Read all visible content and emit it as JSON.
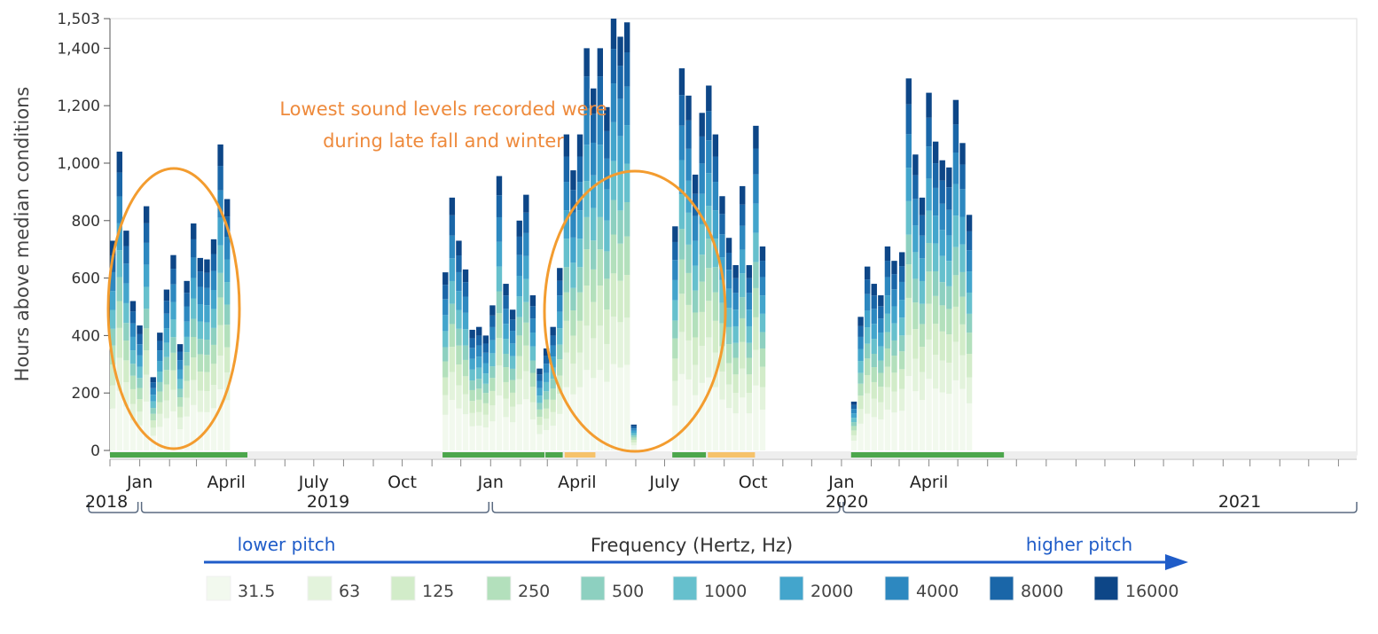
{
  "chart_data": {
    "type": "bar",
    "stacked": true,
    "ylabel": "Hours above median conditions",
    "ylim": [
      0,
      1503
    ],
    "yticks": [
      0,
      200,
      400,
      600,
      800,
      1000,
      1200,
      1400,
      1503
    ],
    "ytick_labels": [
      "0",
      "200",
      "400",
      "600",
      "800",
      "1,000",
      "1,200",
      "1,400",
      "1,503"
    ],
    "x_start": "2017-12-01",
    "x_end": "2021-06-20",
    "month_ticks": [
      {
        "label": "Jan",
        "date": "2018-01-01"
      },
      {
        "label": "April",
        "date": "2018-04-01"
      },
      {
        "label": "July",
        "date": "2018-07-01"
      },
      {
        "label": "Oct",
        "date": "2018-10-01"
      },
      {
        "label": "Jan",
        "date": "2019-01-01"
      },
      {
        "label": "April",
        "date": "2019-04-01"
      },
      {
        "label": "July",
        "date": "2019-07-01"
      },
      {
        "label": "Oct",
        "date": "2019-10-01"
      },
      {
        "label": "Jan",
        "date": "2020-01-01"
      },
      {
        "label": "April",
        "date": "2020-04-01"
      }
    ],
    "years": [
      {
        "label": "2018",
        "start": "2017-12-01",
        "end": "2018-01-01"
      },
      {
        "label": "2019",
        "start": "2018-01-01",
        "end": "2019-01-01"
      },
      {
        "label": "2020",
        "start": "2019-01-01",
        "end": "2020-01-01"
      },
      {
        "label": "2021",
        "start": "2020-01-01",
        "end": "2020-06-20"
      }
    ],
    "coverage": [
      {
        "start": "2017-12-01",
        "end": "2018-04-23",
        "color": "#4ca64c"
      },
      {
        "start": "2018-11-12",
        "end": "2019-02-26",
        "color": "#4ca64c"
      },
      {
        "start": "2019-02-27",
        "end": "2019-03-17",
        "color": "#4ca64c"
      },
      {
        "start": "2019-03-19",
        "end": "2019-04-20",
        "color": "#f6c26b"
      },
      {
        "start": "2019-07-09",
        "end": "2019-08-13",
        "color": "#4ca64c"
      },
      {
        "start": "2019-08-15",
        "end": "2019-10-03",
        "color": "#f6c26b"
      },
      {
        "start": "2020-01-11",
        "end": "2020-06-18",
        "color": "#4ca64c"
      }
    ],
    "weeks": [
      {
        "date": "2017-12-01",
        "total": 730
      },
      {
        "date": "2017-12-08",
        "total": 1040
      },
      {
        "date": "2017-12-15",
        "total": 765
      },
      {
        "date": "2017-12-22",
        "total": 520
      },
      {
        "date": "2017-12-29",
        "total": 435
      },
      {
        "date": "2018-01-05",
        "total": 850
      },
      {
        "date": "2018-01-12",
        "total": 255
      },
      {
        "date": "2018-01-19",
        "total": 410
      },
      {
        "date": "2018-01-26",
        "total": 560
      },
      {
        "date": "2018-02-02",
        "total": 680
      },
      {
        "date": "2018-02-09",
        "total": 370
      },
      {
        "date": "2018-02-16",
        "total": 590
      },
      {
        "date": "2018-02-23",
        "total": 790
      },
      {
        "date": "2018-03-02",
        "total": 670
      },
      {
        "date": "2018-03-09",
        "total": 665
      },
      {
        "date": "2018-03-16",
        "total": 735
      },
      {
        "date": "2018-03-23",
        "total": 1065
      },
      {
        "date": "2018-03-30",
        "total": 875
      },
      {
        "date": "2018-11-12",
        "total": 620
      },
      {
        "date": "2018-11-19",
        "total": 880
      },
      {
        "date": "2018-11-26",
        "total": 730
      },
      {
        "date": "2018-12-03",
        "total": 630
      },
      {
        "date": "2018-12-10",
        "total": 420
      },
      {
        "date": "2018-12-17",
        "total": 430
      },
      {
        "date": "2018-12-24",
        "total": 400
      },
      {
        "date": "2018-12-31",
        "total": 505
      },
      {
        "date": "2019-01-07",
        "total": 955
      },
      {
        "date": "2019-01-14",
        "total": 580
      },
      {
        "date": "2019-01-21",
        "total": 490
      },
      {
        "date": "2019-01-28",
        "total": 800
      },
      {
        "date": "2019-02-04",
        "total": 890
      },
      {
        "date": "2019-02-11",
        "total": 540
      },
      {
        "date": "2019-02-18",
        "total": 285
      },
      {
        "date": "2019-02-25",
        "total": 355
      },
      {
        "date": "2019-03-04",
        "total": 430
      },
      {
        "date": "2019-03-11",
        "total": 635
      },
      {
        "date": "2019-03-18",
        "total": 1100
      },
      {
        "date": "2019-03-25",
        "total": 975
      },
      {
        "date": "2019-04-01",
        "total": 1100
      },
      {
        "date": "2019-04-08",
        "total": 1400
      },
      {
        "date": "2019-04-15",
        "total": 1260
      },
      {
        "date": "2019-04-22",
        "total": 1400
      },
      {
        "date": "2019-04-29",
        "total": 1195
      },
      {
        "date": "2019-05-06",
        "total": 1503
      },
      {
        "date": "2019-05-13",
        "total": 1440
      },
      {
        "date": "2019-05-20",
        "total": 1490
      },
      {
        "date": "2019-05-27",
        "total": 90
      },
      {
        "date": "2019-07-09",
        "total": 780
      },
      {
        "date": "2019-07-16",
        "total": 1330
      },
      {
        "date": "2019-07-23",
        "total": 1235
      },
      {
        "date": "2019-07-30",
        "total": 960
      },
      {
        "date": "2019-08-06",
        "total": 1175
      },
      {
        "date": "2019-08-13",
        "total": 1270
      },
      {
        "date": "2019-08-20",
        "total": 1100
      },
      {
        "date": "2019-08-27",
        "total": 885
      },
      {
        "date": "2019-09-03",
        "total": 740
      },
      {
        "date": "2019-09-10",
        "total": 645
      },
      {
        "date": "2019-09-17",
        "total": 920
      },
      {
        "date": "2019-09-24",
        "total": 645
      },
      {
        "date": "2019-10-01",
        "total": 1130
      },
      {
        "date": "2019-10-08",
        "total": 710
      },
      {
        "date": "2020-01-11",
        "total": 170
      },
      {
        "date": "2020-01-18",
        "total": 465
      },
      {
        "date": "2020-01-25",
        "total": 640
      },
      {
        "date": "2020-02-01",
        "total": 580
      },
      {
        "date": "2020-02-08",
        "total": 540
      },
      {
        "date": "2020-02-15",
        "total": 710
      },
      {
        "date": "2020-02-22",
        "total": 660
      },
      {
        "date": "2020-03-01",
        "total": 690
      },
      {
        "date": "2020-03-08",
        "total": 1295
      },
      {
        "date": "2020-03-15",
        "total": 1030
      },
      {
        "date": "2020-03-22",
        "total": 880
      },
      {
        "date": "2020-03-29",
        "total": 1245
      },
      {
        "date": "2020-04-05",
        "total": 1075
      },
      {
        "date": "2020-04-12",
        "total": 1010
      },
      {
        "date": "2020-04-19",
        "total": 985
      },
      {
        "date": "2020-04-26",
        "total": 1220
      },
      {
        "date": "2020-05-03",
        "total": 1070
      },
      {
        "date": "2020-05-10",
        "total": 820
      }
    ],
    "freq_title": "Frequency (Hertz, Hz)",
    "pitch_low": "lower pitch",
    "pitch_high": "higher pitch",
    "series": [
      {
        "name": "31.5",
        "color": "#f2f9ee"
      },
      {
        "name": "63",
        "color": "#e3f3dc"
      },
      {
        "name": "125",
        "color": "#d2ecc9"
      },
      {
        "name": "250",
        "color": "#b3e0bc"
      },
      {
        "name": "500",
        "color": "#8dd0c0"
      },
      {
        "name": "1000",
        "color": "#66c0cd"
      },
      {
        "name": "2000",
        "color": "#43a5cc"
      },
      {
        "name": "4000",
        "color": "#2d88c0"
      },
      {
        "name": "8000",
        "color": "#1a66a8"
      },
      {
        "name": "16000",
        "color": "#0d4687"
      }
    ],
    "annotation": [
      "Lowest sound levels recorded were",
      "during late fall and winter"
    ]
  }
}
